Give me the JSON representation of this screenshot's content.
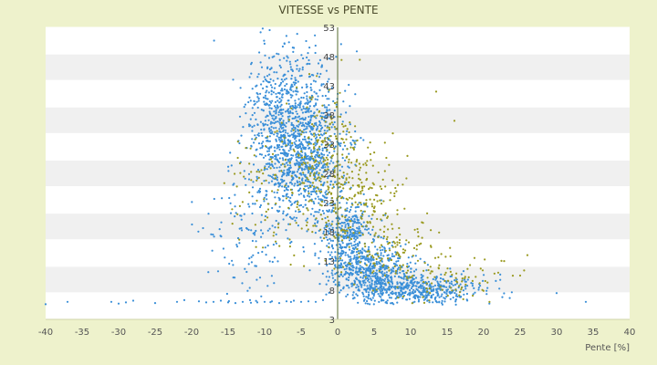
{
  "chart_data": {
    "type": "scatter",
    "title": "VITESSE vs PENTE",
    "xlabel": "Pente [%]",
    "ylabel": "",
    "xlim": [
      -40,
      40
    ],
    "ylim": [
      3,
      53
    ],
    "x_ticks": [
      -40,
      -35,
      -30,
      -25,
      -20,
      -15,
      -10,
      -5,
      0,
      5,
      10,
      15,
      20,
      25,
      30,
      35,
      40
    ],
    "y_tick_labels": [
      {
        "value": 53,
        "label": "53"
      },
      {
        "value": 48,
        "label": "48"
      },
      {
        "value": 43,
        "label": "43"
      },
      {
        "value": 38,
        "label": "38"
      },
      {
        "value": 33,
        "label": "33"
      },
      {
        "value": 28,
        "label": "28"
      },
      {
        "value": 23,
        "label": "23"
      },
      {
        "value": 18,
        "label": "18"
      },
      {
        "value": 13,
        "label": "13"
      },
      {
        "value": 8,
        "label": "8"
      },
      {
        "value": 3,
        "label": "3"
      }
    ],
    "grid": true,
    "band_colors": [
      "#ffffff",
      "#f0f0f0"
    ],
    "plot_background": "#ffffff",
    "page_background": "#eef2cc",
    "series": [
      {
        "color": "#3a8fd8",
        "marker": "dot",
        "density_clusters": [
          {
            "cx": -6.5,
            "cy": 36,
            "sx": 3.2,
            "sy": 7,
            "n": 900
          },
          {
            "cx": -4,
            "cy": 30,
            "sx": 2.5,
            "sy": 5,
            "n": 500
          },
          {
            "cx": 1.5,
            "cy": 17,
            "sx": 1.8,
            "sy": 3,
            "n": 350
          },
          {
            "cx": 5,
            "cy": 11,
            "sx": 3,
            "sy": 2.2,
            "n": 500
          },
          {
            "cx": 11,
            "cy": 8,
            "sx": 4.5,
            "sy": 1.3,
            "n": 450
          },
          {
            "cx": -12,
            "cy": 18,
            "sx": 3,
            "sy": 6,
            "n": 120
          }
        ],
        "floor_points": [
          [
            -40,
            5.6
          ],
          [
            -37,
            6.0
          ],
          [
            -31,
            6.0
          ],
          [
            -30,
            5.7
          ],
          [
            -29,
            5.9
          ],
          [
            -28,
            6.2
          ],
          [
            -25,
            5.8
          ],
          [
            -22,
            6.0
          ],
          [
            -21,
            6.3
          ],
          [
            -19,
            6.1
          ],
          [
            -18,
            5.9
          ],
          [
            -17,
            6.0
          ],
          [
            -16,
            6.2
          ],
          [
            -15,
            5.9
          ],
          [
            -14,
            5.8
          ],
          [
            -13,
            6.0
          ],
          [
            -12,
            6.3
          ],
          [
            -11,
            5.9
          ],
          [
            -10,
            6.0
          ],
          [
            -9,
            6.1
          ],
          [
            -8,
            5.8
          ],
          [
            -7,
            6.1
          ],
          [
            -6,
            6.2
          ],
          [
            -5,
            6.0
          ],
          [
            -4,
            6.1
          ],
          [
            -3,
            6.0
          ],
          [
            -2,
            6.3
          ],
          [
            30,
            7.5
          ],
          [
            34,
            6.0
          ]
        ]
      },
      {
        "color": "#9a9a20",
        "marker": "dot",
        "density_clusters": [
          {
            "cx": -2,
            "cy": 30,
            "sx": 2.5,
            "sy": 6,
            "n": 220
          },
          {
            "cx": 3,
            "cy": 24,
            "sx": 2.8,
            "sy": 5,
            "n": 180
          },
          {
            "cx": 8,
            "cy": 14,
            "sx": 3.5,
            "sy": 3,
            "n": 130
          },
          {
            "cx": 16,
            "cy": 10,
            "sx": 4,
            "sy": 2,
            "n": 70
          },
          {
            "cx": -9,
            "cy": 26,
            "sx": 3,
            "sy": 6,
            "n": 90
          }
        ],
        "outliers": [
          [
            13.5,
            42
          ],
          [
            16,
            37
          ],
          [
            25,
            10.5
          ],
          [
            26,
            14
          ],
          [
            22,
            11
          ]
        ]
      }
    ],
    "seed": 7
  }
}
